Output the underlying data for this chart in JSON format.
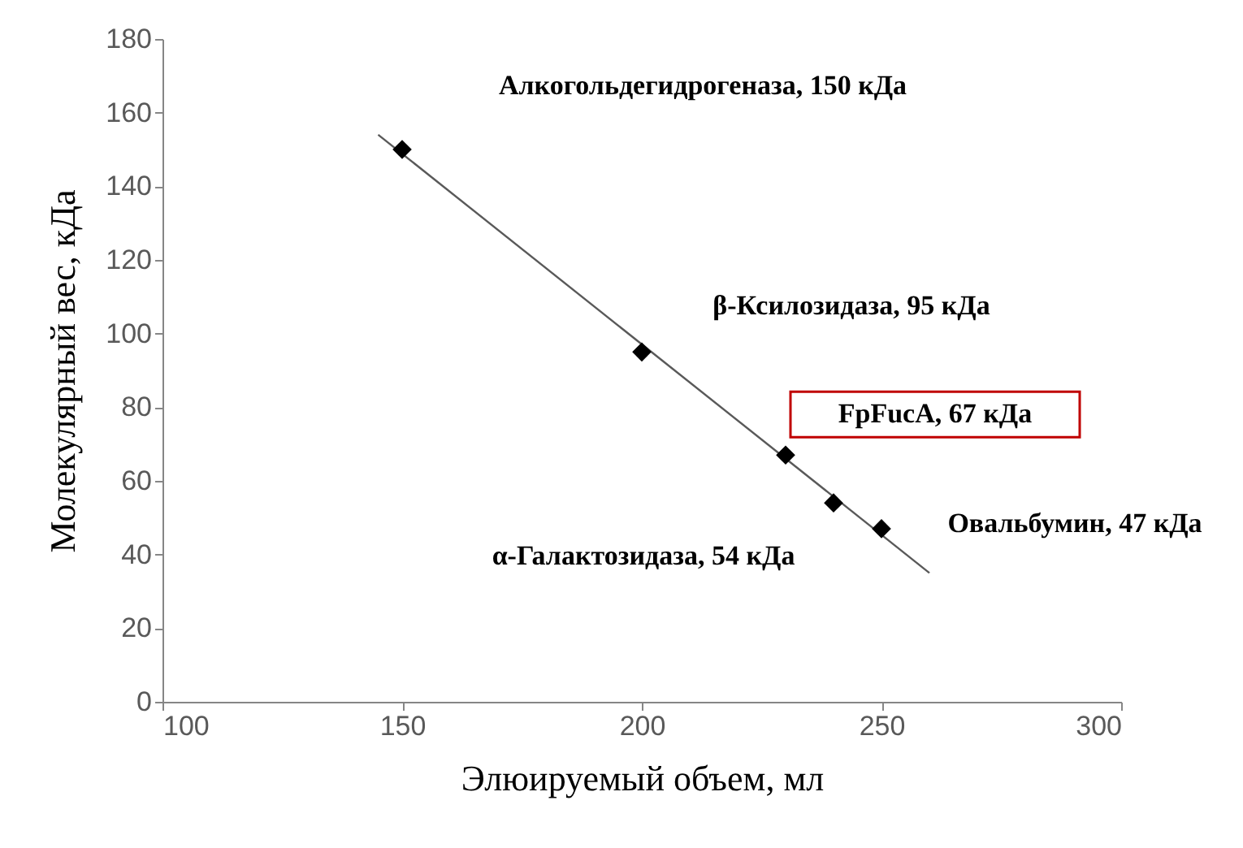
{
  "chart_data": {
    "type": "scatter",
    "xlabel": "Элюируемый объем, мл",
    "ylabel": "Молекулярный вес, кДа",
    "xlim": [
      100,
      300
    ],
    "xticks": [
      100,
      150,
      200,
      250,
      300
    ],
    "ylim": [
      0,
      180
    ],
    "yticks": [
      0,
      20,
      40,
      60,
      80,
      100,
      120,
      140,
      160,
      180
    ],
    "grid": false,
    "marker": "diamond",
    "series": [
      {
        "color": "#000000",
        "x": [
          150,
          200,
          230,
          240,
          250
        ],
        "values": [
          150,
          95,
          67,
          54,
          47
        ]
      },
      {
        "type": "line",
        "color": "#595959",
        "marker": "none",
        "x": [
          145,
          260
        ],
        "values": [
          154,
          35
        ]
      }
    ],
    "annotations": [
      "Алкогольдегидрогеназа, 150 кДа",
      "β-Ксилозидаза, 95 кДа",
      "FpFucA, 67 кДа",
      "α-Галактозидаза, 54 кДа",
      "Овальбумин, 47 кДа"
    ]
  }
}
